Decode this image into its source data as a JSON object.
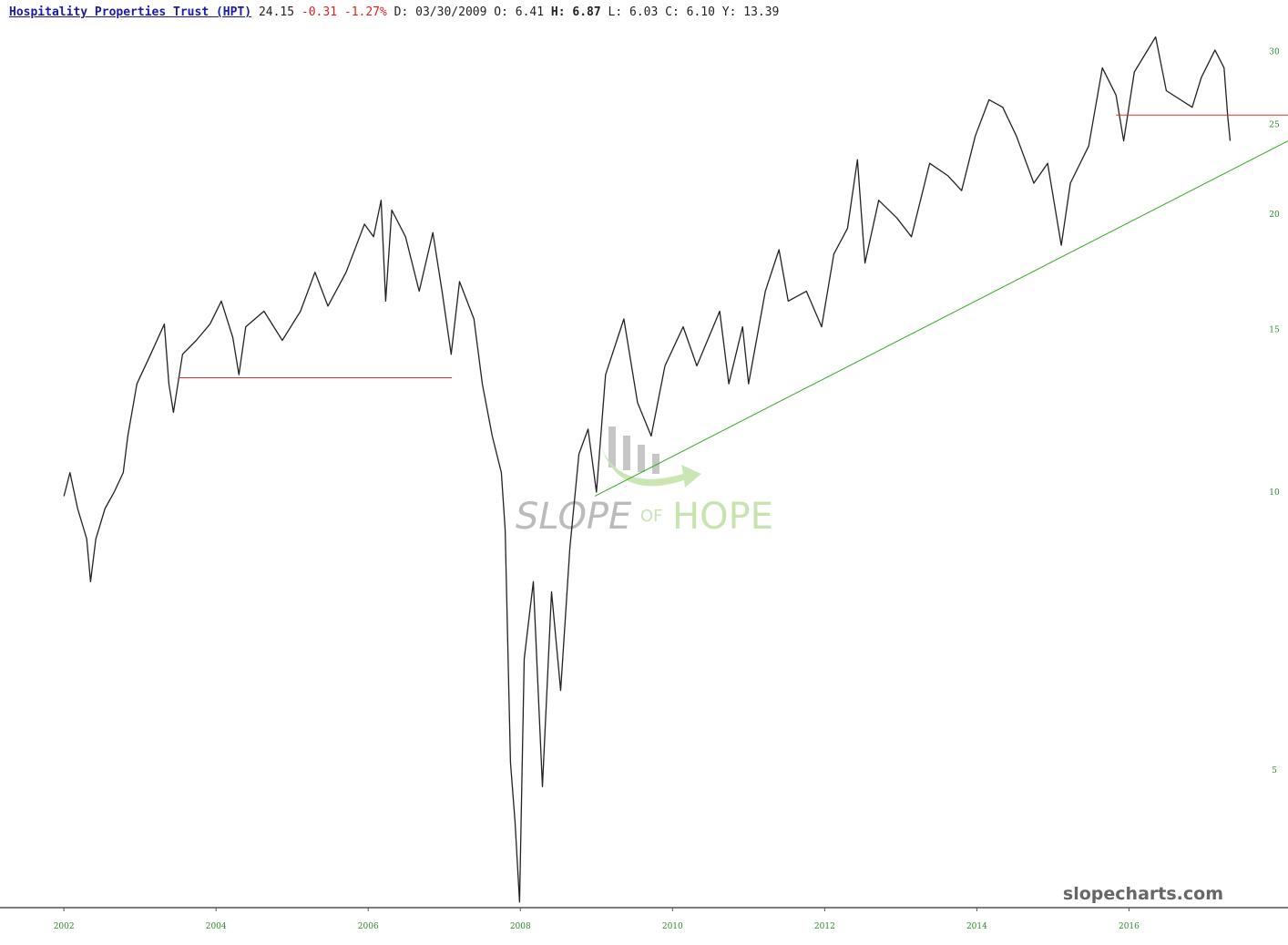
{
  "chart_data": {
    "type": "line",
    "header": {
      "title": "Hospitality Properties Trust (HPT)",
      "last": 24.15,
      "change": -0.31,
      "change_pct": "-1.27%",
      "fields": [
        {
          "label": "D:",
          "value": "03/30/2009"
        },
        {
          "label": "O:",
          "value": 6.41
        },
        {
          "label": "H:",
          "value": 6.87
        },
        {
          "label": "L:",
          "value": 6.03
        },
        {
          "label": "C:",
          "value": "6.10"
        },
        {
          "label": "Y:",
          "value": 13.39
        }
      ]
    },
    "watermark": [
      "SLOPE",
      "OF",
      "HOPE"
    ],
    "footer": "slopecharts.com",
    "log_scale": true,
    "grid": false,
    "xlim": [
      2001.16,
      2018.09
    ],
    "xticks": [
      2002,
      2004,
      2006,
      2008,
      2010,
      2012,
      2014,
      2016
    ],
    "ylim": [
      3.55,
      34.1
    ],
    "yticks": [
      5,
      10,
      15,
      20,
      25,
      30
    ],
    "series": [
      {
        "color": "#222222",
        "x": [
          2002.0,
          2002.08,
          2002.18,
          2002.3,
          2002.35,
          2002.42,
          2002.54,
          2002.66,
          2002.78,
          2002.84,
          2002.96,
          2003.14,
          2003.32,
          2003.38,
          2003.44,
          2003.56,
          2003.74,
          2003.92,
          2004.07,
          2004.22,
          2004.3,
          2004.39,
          2004.63,
          2004.87,
          2005.11,
          2005.3,
          2005.47,
          2005.71,
          2005.95,
          2006.07,
          2006.17,
          2006.23,
          2006.31,
          2006.49,
          2006.67,
          2006.85,
          2006.97,
          2007.09,
          2007.2,
          2007.39,
          2007.5,
          2007.63,
          2007.75,
          2007.8,
          2007.87,
          2007.93,
          2007.99,
          2008.05,
          2008.17,
          2008.29,
          2008.41,
          2008.53,
          2008.65,
          2008.77,
          2008.89,
          2009.0,
          2009.12,
          2009.36,
          2009.54,
          2009.72,
          2009.9,
          2010.14,
          2010.32,
          2010.62,
          2010.74,
          2010.92,
          2011.0,
          2011.22,
          2011.4,
          2011.52,
          2011.76,
          2011.96,
          2012.12,
          2012.3,
          2012.43,
          2012.53,
          2012.71,
          2012.95,
          2013.14,
          2013.38,
          2013.62,
          2013.8,
          2013.98,
          2014.16,
          2014.34,
          2014.52,
          2014.75,
          2014.93,
          2015.11,
          2015.23,
          2015.47,
          2015.65,
          2015.83,
          2015.93,
          2016.07,
          2016.35,
          2016.49,
          2016.83,
          2016.95,
          2017.13,
          2017.25,
          2017.3,
          2017.33
        ],
        "values": [
          9.9,
          10.5,
          9.6,
          8.9,
          8.0,
          8.9,
          9.6,
          10.0,
          10.5,
          11.5,
          13.1,
          14.1,
          15.2,
          13.1,
          12.2,
          14.1,
          14.6,
          15.2,
          16.1,
          14.7,
          13.4,
          15.1,
          15.7,
          14.6,
          15.7,
          17.3,
          15.9,
          17.3,
          19.5,
          18.9,
          20.7,
          16.1,
          20.2,
          18.9,
          16.5,
          19.1,
          16.5,
          14.1,
          16.9,
          15.4,
          13.1,
          11.5,
          10.5,
          9.1,
          5.1,
          4.4,
          3.6,
          6.6,
          8.0,
          4.8,
          7.8,
          6.1,
          8.7,
          11.0,
          11.7,
          10.0,
          13.4,
          15.4,
          12.5,
          11.5,
          13.7,
          15.1,
          13.7,
          15.7,
          13.1,
          15.1,
          13.1,
          16.5,
          18.3,
          16.1,
          16.5,
          15.1,
          18.1,
          19.3,
          22.9,
          17.7,
          20.7,
          19.8,
          18.9,
          22.7,
          22.0,
          21.2,
          24.3,
          26.6,
          26.1,
          24.3,
          21.6,
          22.7,
          18.5,
          21.6,
          23.7,
          28.8,
          26.9,
          24.0,
          28.5,
          31.1,
          27.2,
          26.1,
          28.1,
          30.1,
          28.8,
          25.4,
          24.0
        ]
      }
    ],
    "lines": [
      {
        "color": "#e03030",
        "x": [
          2003.5,
          2007.1
        ],
        "values": [
          13.3,
          13.3
        ]
      },
      {
        "color": "#e03030",
        "x": [
          2015.83,
          2018.09
        ],
        "values": [
          25.6,
          25.6
        ]
      },
      {
        "color": "#33aa22",
        "x": [
          2008.98,
          2018.09
        ],
        "values": [
          9.9,
          24.0
        ]
      }
    ]
  }
}
